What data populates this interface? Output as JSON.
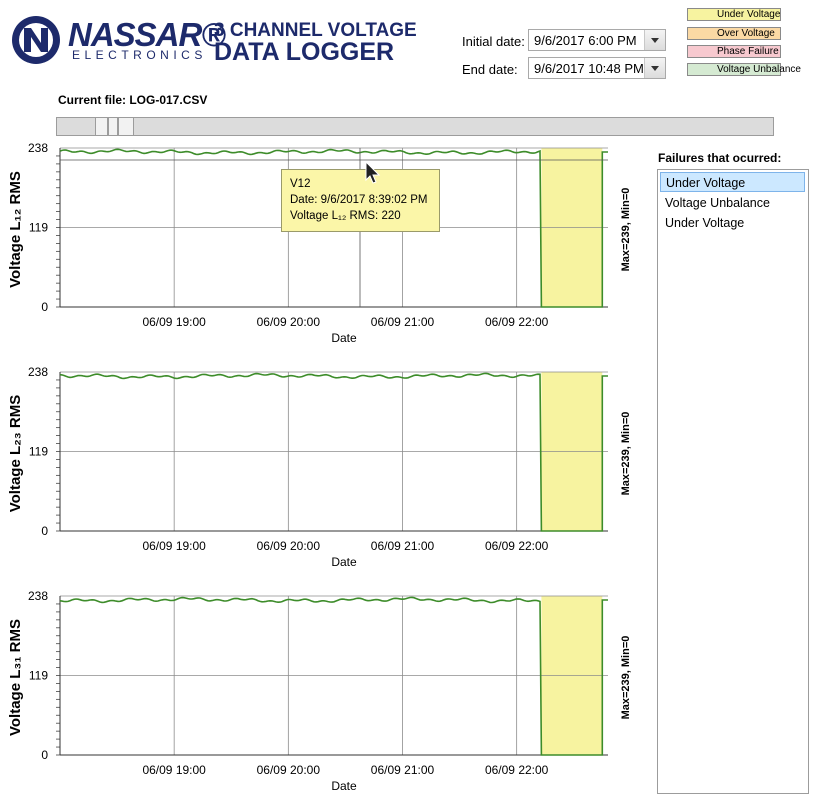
{
  "header": {
    "brand": "NASSAR®",
    "brand_sub": "ELECTRONICS",
    "title_line1": "3 CHANNEL VOLTAGE",
    "title_line2": "DATA LOGGER",
    "logo_icon": "nassar-logo-icon",
    "brand_color": "#1d2a6b"
  },
  "dates": {
    "initial_label": "Initial date:",
    "initial_value": "9/6/2017 6:00 PM",
    "end_label": "End date:",
    "end_value": "9/6/2017 10:48 PM"
  },
  "legend": [
    {
      "label": "Under Voltage",
      "color": "#f7f3a0"
    },
    {
      "label": "Over Voltage",
      "color": "#fbd9a4"
    },
    {
      "label": "Phase Failure",
      "color": "#f7c9cf"
    },
    {
      "label": "Voltage Unbalance",
      "color": "#d5ead2"
    }
  ],
  "file": {
    "current_label": "Current file: LOG-017.CSV"
  },
  "failures": {
    "title": "Failures that ocurred:",
    "items": [
      "Under Voltage",
      "Voltage Unbalance",
      "Under Voltage"
    ],
    "selected_index": 0
  },
  "tooltip": {
    "series": "V12",
    "date": "Date: 9/6/2017 8:39:02 PM",
    "value": "Voltage L₁₂ RMS: 220"
  },
  "chart_data": [
    {
      "type": "line",
      "series": [
        {
          "name": "V12",
          "color": "#3d8c2a"
        }
      ],
      "ylabel": "Voltage L₁₂ RMS",
      "xlabel": "Date",
      "yticks": [
        "0",
        "119",
        "238"
      ],
      "ylim": [
        0,
        238
      ],
      "xticks": [
        "06/09 19:00",
        "06/09 20:00",
        "06/09 21:00",
        "06/09 22:00"
      ],
      "xlim": [
        "06/09 18:00",
        "06/09 22:48"
      ],
      "side_label": "Max=239, Min=0",
      "baseline_value": 232,
      "under_voltage_band": [
        "06/09 22:13",
        "06/09 22:45"
      ],
      "band_color": "#f7f3a0",
      "grid": true
    },
    {
      "type": "line",
      "series": [
        {
          "name": "V23",
          "color": "#3d8c2a"
        }
      ],
      "ylabel": "Voltage L₂₃ RMS",
      "xlabel": "Date",
      "yticks": [
        "0",
        "119",
        "238"
      ],
      "ylim": [
        0,
        238
      ],
      "xticks": [
        "06/09 19:00",
        "06/09 20:00",
        "06/09 21:00",
        "06/09 22:00"
      ],
      "xlim": [
        "06/09 18:00",
        "06/09 22:48"
      ],
      "side_label": "Max=239, Min=0",
      "baseline_value": 232,
      "under_voltage_band": [
        "06/09 22:13",
        "06/09 22:45"
      ],
      "band_color": "#f7f3a0",
      "grid": true
    },
    {
      "type": "line",
      "series": [
        {
          "name": "V31",
          "color": "#3d8c2a"
        }
      ],
      "ylabel": "Voltage L₃₁ RMS",
      "xlabel": "Date",
      "yticks": [
        "0",
        "119",
        "238"
      ],
      "ylim": [
        0,
        238
      ],
      "xticks": [
        "06/09 19:00",
        "06/09 20:00",
        "06/09 21:00",
        "06/09 22:00"
      ],
      "xlim": [
        "06/09 18:00",
        "06/09 22:48"
      ],
      "side_label": "Max=239, Min=0",
      "baseline_value": 232,
      "under_voltage_band": [
        "06/09 22:13",
        "06/09 22:45"
      ],
      "band_color": "#f7f3a0",
      "grid": true
    }
  ]
}
